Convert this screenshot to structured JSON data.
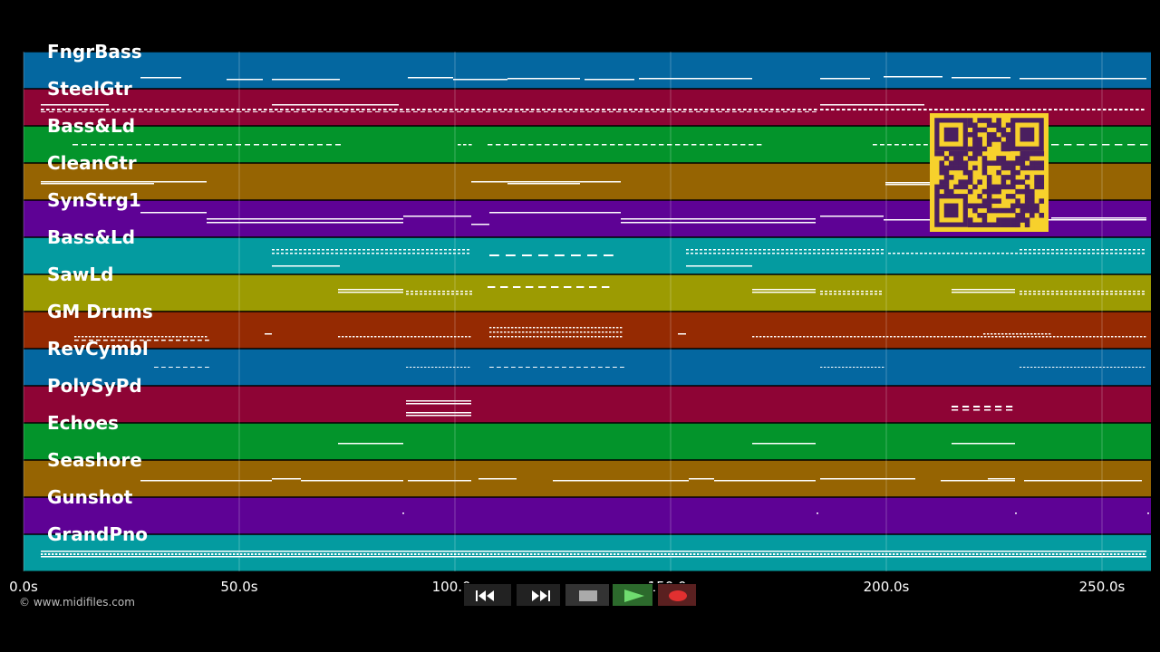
{
  "tracks": [
    {
      "name": "FngrBass",
      "color": "#0467a0"
    },
    {
      "name": "SteelGtr",
      "color": "#8e0435"
    },
    {
      "name": "Bass&Ld",
      "color": "#03942b"
    },
    {
      "name": "CleanGtr",
      "color": "#966402"
    },
    {
      "name": "SynStrg1",
      "color": "#5e0295"
    },
    {
      "name": "Bass&Ld",
      "color": "#049ba0"
    },
    {
      "name": "SawLd",
      "color": "#9c9b02"
    },
    {
      "name": "GM Drums",
      "color": "#952a02"
    },
    {
      "name": "RevCymbl",
      "color": "#0467a0"
    },
    {
      "name": "PolySyPd",
      "color": "#8e0435"
    },
    {
      "name": "Echoes",
      "color": "#03942b"
    },
    {
      "name": "Seashore",
      "color": "#966402"
    },
    {
      "name": "Gunshot",
      "color": "#5e0295"
    },
    {
      "name": "GrandPno",
      "color": "#049ba0"
    }
  ],
  "timeline": {
    "ticks": [
      {
        "t": 0,
        "label": "0.0s"
      },
      {
        "t": 50,
        "label": "50.0s"
      },
      {
        "t": 100,
        "label": "100.0s"
      },
      {
        "t": 150,
        "label": "150.0s"
      },
      {
        "t": 200,
        "label": "200.0s"
      },
      {
        "t": 250,
        "label": "250.0s"
      }
    ]
  },
  "copyright": "© www.midifiles.com",
  "transport": {
    "buttons": [
      {
        "name": "rewind-button",
        "icon": "rewind-icon"
      },
      {
        "name": "fast-forward-button",
        "icon": "fast-forward-icon"
      },
      {
        "name": "stop-button",
        "icon": "stop-icon"
      },
      {
        "name": "play-button",
        "icon": "play-icon"
      },
      {
        "name": "record-button",
        "icon": "record-icon"
      }
    ]
  },
  "qr": {
    "icon": "qr-code-icon",
    "fg": "#f7d12c",
    "bg": "#4a1f60"
  }
}
